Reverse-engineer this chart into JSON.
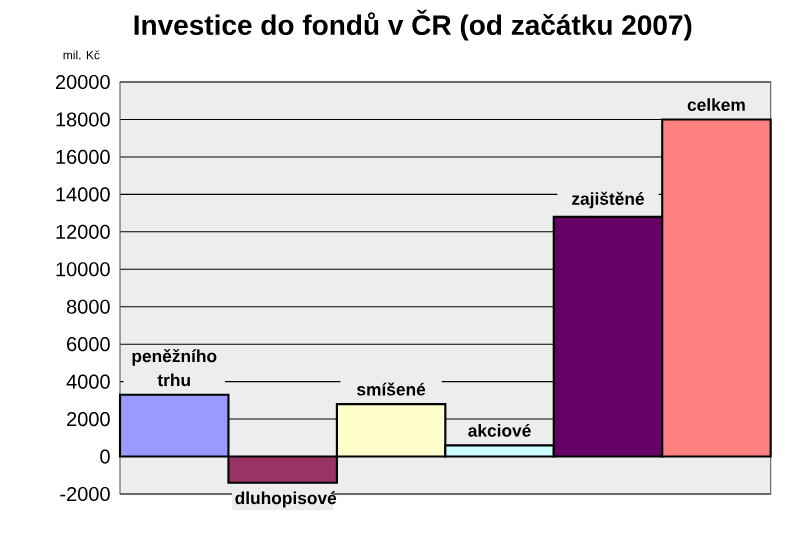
{
  "chart_data": {
    "type": "bar",
    "title": "Investice do fondů v ČR (od začátku 2007)",
    "ylabel": "mil. Kč",
    "categories": [
      "peněžního trhu",
      "dluhopisové",
      "smíšené",
      "akciové",
      "zajištěné",
      "celkem"
    ],
    "values": [
      3300,
      -1400,
      2800,
      600,
      12800,
      18000
    ],
    "colors": [
      "#9999ff",
      "#993366",
      "#ffffcc",
      "#ccffff",
      "#660066",
      "#ff8080"
    ],
    "ylim": [
      -2000,
      20000
    ],
    "yticks": [
      -2000,
      0,
      2000,
      4000,
      6000,
      8000,
      10000,
      12000,
      14000,
      16000,
      18000,
      20000
    ],
    "grid": "y",
    "tick_labels": "y"
  }
}
